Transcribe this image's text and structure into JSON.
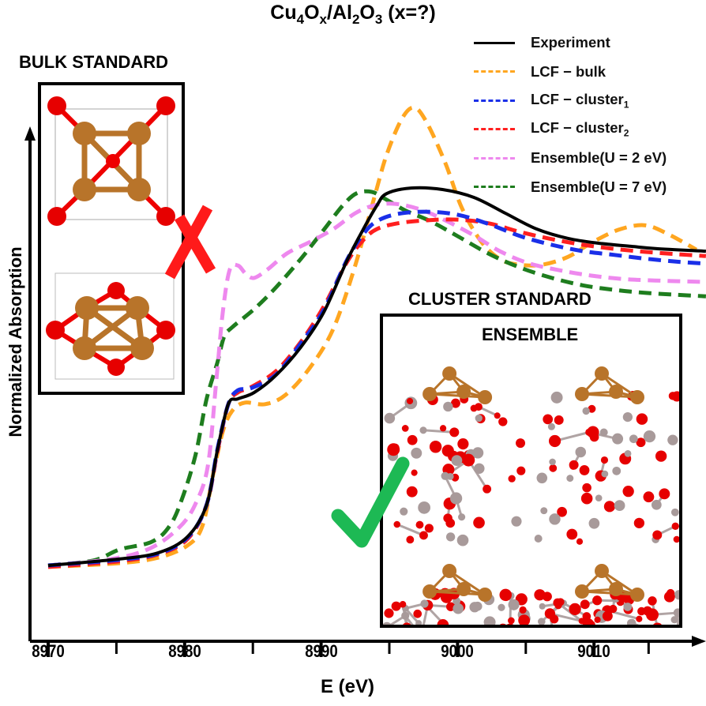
{
  "figure": {
    "title_parts": {
      "a": "Cu",
      "b": "4",
      "c": "O",
      "d": "x",
      "e": "/Al",
      "f": "2",
      "g": "O",
      "h": "3",
      "i": " (x=?)"
    },
    "bulk_inset": {
      "title": "BULK STANDARD",
      "verdict_icon": "red-x",
      "verdict_color": "#ff1a1a"
    },
    "cluster_inset": {
      "title": "CLUSTER STANDARD",
      "subtitle": "ENSEMBLE",
      "verdict_icon": "green-check",
      "verdict_color": "#1db954"
    }
  },
  "chart_data": {
    "type": "line",
    "title": "Cu4Ox/Al2O3 (x=?)",
    "xlabel": "E (eV)",
    "ylabel": "Normalized Absorption",
    "xlim": [
      8970,
      9017
    ],
    "ylim": [
      0,
      1.5
    ],
    "xticks_major": [
      8970,
      8980,
      8990,
      9000,
      9010
    ],
    "xticks_minor": [
      8975,
      8985,
      8995,
      9005,
      9014
    ],
    "xtick_labels": [
      "8970",
      "8980",
      "8990",
      "9000",
      "9010"
    ],
    "y_ticks_shown": false,
    "grid": false,
    "legend_position": "top-right",
    "series": [
      {
        "name": "Experiment",
        "label_main": "Experiment",
        "label_sub": "",
        "color": "#000000",
        "style": "solid",
        "x": [
          8970,
          8975.2,
          8978.1,
          8980.2,
          8981.6,
          8982.4,
          8983.2,
          8983.9,
          8985.1,
          8986.7,
          8988.5,
          8990.2,
          8991.9,
          8993.1,
          8994.1,
          8994.8,
          8996.6,
          8998.9,
          9001.2,
          9003.5,
          9005.8,
          9008.1,
          9010.4,
          9012.7,
          9014.5,
          9018.2
        ],
        "y": [
          0,
          0.017,
          0.034,
          0.076,
          0.16,
          0.307,
          0.429,
          0.443,
          0.46,
          0.506,
          0.58,
          0.674,
          0.811,
          0.895,
          0.958,
          0.989,
          1.004,
          1.0,
          0.979,
          0.937,
          0.895,
          0.87,
          0.857,
          0.849,
          0.843,
          0.836
        ]
      },
      {
        "name": "LCF - bulk",
        "label_main": "LCF − bulk",
        "label_sub": "",
        "color": "#ffa620",
        "style": "dashed",
        "x": [
          8970,
          8975.2,
          8978.1,
          8980.2,
          8981.3,
          8982.1,
          8982.8,
          8983.5,
          8984.4,
          8985.9,
          8987.4,
          8989.2,
          8990.9,
          8992.5,
          8993.9,
          8994.8,
          8995.9,
          8996.8,
          8997.7,
          8999.1,
          9000.3,
          9001.7,
          9003.1,
          9004.5,
          9006.2,
          9008.1,
          9009.9,
          9011.8,
          9013.7,
          9015.4,
          9017.5
        ],
        "y": [
          -0.004,
          0.006,
          0.021,
          0.053,
          0.105,
          0.244,
          0.357,
          0.412,
          0.433,
          0.429,
          0.454,
          0.527,
          0.63,
          0.798,
          0.979,
          1.092,
          1.187,
          1.218,
          1.181,
          1.071,
          0.952,
          0.863,
          0.815,
          0.8,
          0.8,
          0.821,
          0.86,
          0.893,
          0.905,
          0.882,
          0.84
        ]
      },
      {
        "name": "LCF - cluster1",
        "label_main": "LCF − cluster",
        "label_sub": "1",
        "color": "#1a2fe8",
        "style": "dashed",
        "x": [
          8970,
          8975.2,
          8978.1,
          8980.2,
          8981.6,
          8982.4,
          8983.2,
          8983.9,
          8984.9,
          8986.7,
          8988.5,
          8990.2,
          8991.9,
          8993.1,
          8994.1,
          8995.6,
          8997.7,
          9000.0,
          9002.3,
          9004.6,
          9006.9,
          9009.2,
          9011.5,
          9013.8,
          9016.1,
          9018.2
        ],
        "y": [
          0,
          0.015,
          0.032,
          0.074,
          0.16,
          0.309,
          0.429,
          0.466,
          0.472,
          0.508,
          0.59,
          0.68,
          0.813,
          0.882,
          0.916,
          0.935,
          0.941,
          0.933,
          0.908,
          0.876,
          0.853,
          0.836,
          0.826,
          0.816,
          0.808,
          0.803
        ]
      },
      {
        "name": "LCF - cluster2",
        "label_main": "LCF − cluster",
        "label_sub": "2",
        "color": "#ff1f1f",
        "style": "dashed",
        "x": [
          8970,
          8975.2,
          8978.1,
          8980.2,
          8981.6,
          8982.4,
          8983.2,
          8983.9,
          8984.9,
          8986.7,
          8988.5,
          8990.2,
          8991.9,
          8993.1,
          8994.1,
          8995.6,
          8997.7,
          9000.0,
          9002.3,
          9004.6,
          9006.9,
          9009.2,
          9011.5,
          9013.8,
          9016.1,
          9018.2
        ],
        "y": [
          -0.004,
          0.011,
          0.03,
          0.07,
          0.16,
          0.303,
          0.429,
          0.46,
          0.475,
          0.517,
          0.594,
          0.689,
          0.807,
          0.866,
          0.895,
          0.91,
          0.918,
          0.92,
          0.91,
          0.887,
          0.868,
          0.853,
          0.842,
          0.834,
          0.828,
          0.823
        ]
      },
      {
        "name": "Ensemble(U=2 eV)",
        "label_main": "Ensemble(U = 2 eV)",
        "label_sub": "",
        "color": "#ee88ee",
        "style": "dashed",
        "x": [
          8970,
          8974.6,
          8977.5,
          8979.6,
          8980.8,
          8981.7,
          8982.3,
          8982.8,
          8983.3,
          8983.9,
          8984.5,
          8985.1,
          8986.1,
          8987.5,
          8989.2,
          8990.9,
          8992.5,
          8993.9,
          8995.4,
          8997.2,
          8999.1,
          9001.2,
          9003.1,
          9005.2,
          9007.5,
          9009.8,
          9012.1,
          9014.5,
          9018.2
        ],
        "y": [
          0,
          0.017,
          0.046,
          0.101,
          0.164,
          0.265,
          0.483,
          0.675,
          0.786,
          0.798,
          0.775,
          0.765,
          0.788,
          0.83,
          0.861,
          0.895,
          0.937,
          0.958,
          0.962,
          0.948,
          0.918,
          0.878,
          0.836,
          0.804,
          0.785,
          0.771,
          0.762,
          0.758,
          0.754
        ]
      },
      {
        "name": "Ensemble(U=7 eV)",
        "label_main": "Ensemble(U = 7 eV)",
        "label_sub": "",
        "color": "#1e7d1e",
        "style": "dashed",
        "x": [
          8970,
          8973.3,
          8975.2,
          8977.6,
          8978.9,
          8979.8,
          8980.8,
          8981.6,
          8982.4,
          8982.9,
          8983.5,
          8985.1,
          8986.7,
          8988.5,
          8990.2,
          8991.6,
          8992.6,
          8993.7,
          8994.7,
          8996.2,
          8998.0,
          9000.0,
          9002.3,
          9004.6,
          9006.9,
          9009.2,
          9011.5,
          9013.8,
          9016.1,
          9018.2
        ],
        "y": [
          0,
          0.013,
          0.042,
          0.063,
          0.105,
          0.176,
          0.294,
          0.441,
          0.54,
          0.609,
          0.634,
          0.682,
          0.74,
          0.815,
          0.893,
          0.958,
          0.99,
          0.994,
          0.975,
          0.944,
          0.916,
          0.876,
          0.829,
          0.792,
          0.765,
          0.745,
          0.733,
          0.725,
          0.72,
          0.716
        ]
      }
    ]
  }
}
